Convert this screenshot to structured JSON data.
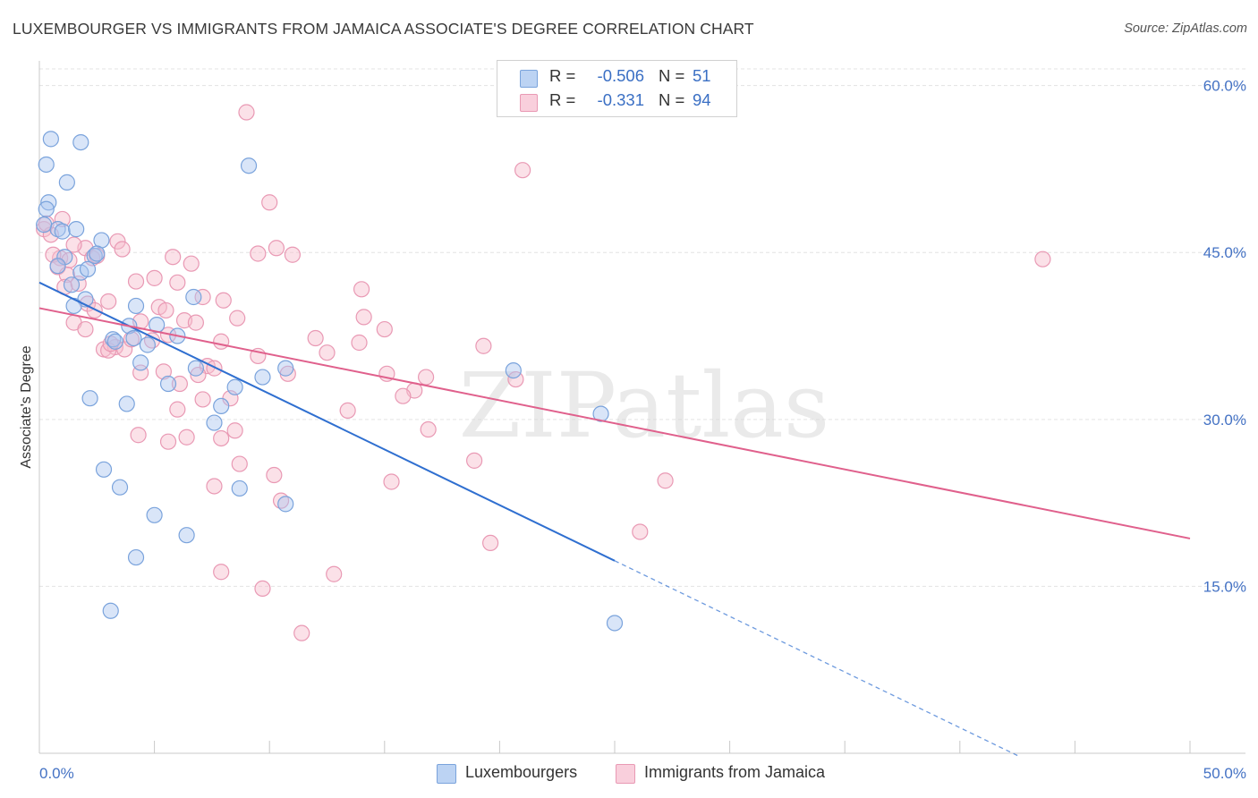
{
  "header": {
    "title": "LUXEMBOURGER VS IMMIGRANTS FROM JAMAICA ASSOCIATE'S DEGREE CORRELATION CHART",
    "source": "Source: ZipAtlas.com"
  },
  "watermark": "ZIPatlas",
  "legend_top": {
    "rows": [
      {
        "r_label": "R =",
        "r_value": "-0.506",
        "n_label": "N =",
        "n_value": "51"
      },
      {
        "r_label": "R =",
        "r_value": "-0.331",
        "n_label": "N =",
        "n_value": "94"
      }
    ]
  },
  "legend_bottom": {
    "items": [
      "Luxembourgers",
      "Immigrants from Jamaica"
    ]
  },
  "colors": {
    "blue_fill": "#aac6ef",
    "blue_stroke": "#7aa3dc",
    "blue_line": "#2f6fd0",
    "pink_fill": "#f7bccd",
    "pink_stroke": "#e999b4",
    "pink_line": "#e0608c",
    "grid": "#e3e3e3",
    "axis_tick_text": "#4472c4"
  },
  "chart_data": {
    "type": "scatter",
    "title": "LUXEMBOURGER VS IMMIGRANTS FROM JAMAICA ASSOCIATE'S DEGREE CORRELATION CHART",
    "xlabel": "",
    "ylabel": "Associate's Degree",
    "xlim": [
      0,
      50
    ],
    "ylim": [
      0,
      61.5
    ],
    "x_tick_labels": [
      "0.0%",
      "50.0%"
    ],
    "y_ticks": [
      15,
      30,
      45,
      60
    ],
    "y_tick_labels": [
      "15.0%",
      "30.0%",
      "45.0%",
      "60.0%"
    ],
    "grid": true,
    "legend_position": "top-center",
    "series": [
      {
        "name": "Luxembourgers",
        "color": "#aac6ef",
        "r": -0.506,
        "n": 51,
        "trend": {
          "x0": 0,
          "y0": 42.3,
          "x1": 25,
          "y1": 17.3,
          "dashed_to_x": 42.6
        },
        "points": [
          [
            0.5,
            55.2
          ],
          [
            1.8,
            54.9
          ],
          [
            0.3,
            52.9
          ],
          [
            1.2,
            51.3
          ],
          [
            9.1,
            52.8
          ],
          [
            0.4,
            49.5
          ],
          [
            0.3,
            48.9
          ],
          [
            0.8,
            47.1
          ],
          [
            1.0,
            46.9
          ],
          [
            1.6,
            47.1
          ],
          [
            2.7,
            46.1
          ],
          [
            1.1,
            44.6
          ],
          [
            2.4,
            44.7
          ],
          [
            2.5,
            44.9
          ],
          [
            0.8,
            43.8
          ],
          [
            1.8,
            43.2
          ],
          [
            2.1,
            43.5
          ],
          [
            1.4,
            42.1
          ],
          [
            6.7,
            41.0
          ],
          [
            2.0,
            40.8
          ],
          [
            1.5,
            40.2
          ],
          [
            4.2,
            40.2
          ],
          [
            3.9,
            38.4
          ],
          [
            5.1,
            38.5
          ],
          [
            4.1,
            37.3
          ],
          [
            3.2,
            37.2
          ],
          [
            6.0,
            37.5
          ],
          [
            4.7,
            36.7
          ],
          [
            3.3,
            37.0
          ],
          [
            4.4,
            35.1
          ],
          [
            6.8,
            34.6
          ],
          [
            10.7,
            34.6
          ],
          [
            9.7,
            33.8
          ],
          [
            5.6,
            33.2
          ],
          [
            8.5,
            32.9
          ],
          [
            20.6,
            34.4
          ],
          [
            2.2,
            31.9
          ],
          [
            3.8,
            31.4
          ],
          [
            7.9,
            31.2
          ],
          [
            7.6,
            29.7
          ],
          [
            24.4,
            30.5
          ],
          [
            2.8,
            25.5
          ],
          [
            3.5,
            23.9
          ],
          [
            8.7,
            23.8
          ],
          [
            10.7,
            22.4
          ],
          [
            5.0,
            21.4
          ],
          [
            6.4,
            19.6
          ],
          [
            4.2,
            17.6
          ],
          [
            3.1,
            12.8
          ],
          [
            25.0,
            11.7
          ],
          [
            0.2,
            47.5
          ]
        ]
      },
      {
        "name": "Immigrants from Jamaica",
        "color": "#f7bccd",
        "r": -0.331,
        "n": 94,
        "trend": {
          "x0": 0,
          "y0": 40.0,
          "x1": 50,
          "y1": 19.3
        },
        "points": [
          [
            9.0,
            57.6
          ],
          [
            21.0,
            52.4
          ],
          [
            10.0,
            49.5
          ],
          [
            0.2,
            47.1
          ],
          [
            0.5,
            46.6
          ],
          [
            0.9,
            44.5
          ],
          [
            1.3,
            44.3
          ],
          [
            0.6,
            44.8
          ],
          [
            2.0,
            45.4
          ],
          [
            2.3,
            44.5
          ],
          [
            2.5,
            44.7
          ],
          [
            1.5,
            45.7
          ],
          [
            0.8,
            43.7
          ],
          [
            1.2,
            43.0
          ],
          [
            3.4,
            46.0
          ],
          [
            3.6,
            45.3
          ],
          [
            5.8,
            44.6
          ],
          [
            10.3,
            45.4
          ],
          [
            11.0,
            44.8
          ],
          [
            9.5,
            44.9
          ],
          [
            6.6,
            44.0
          ],
          [
            43.6,
            44.4
          ],
          [
            1.1,
            41.9
          ],
          [
            1.7,
            42.2
          ],
          [
            4.2,
            42.4
          ],
          [
            5.0,
            42.7
          ],
          [
            6.0,
            42.3
          ],
          [
            7.1,
            41.0
          ],
          [
            8.0,
            40.7
          ],
          [
            3.0,
            40.6
          ],
          [
            2.1,
            40.4
          ],
          [
            5.2,
            40.1
          ],
          [
            5.5,
            39.8
          ],
          [
            4.4,
            38.8
          ],
          [
            1.5,
            38.7
          ],
          [
            2.0,
            38.1
          ],
          [
            6.3,
            38.9
          ],
          [
            6.8,
            38.7
          ],
          [
            8.6,
            39.1
          ],
          [
            14.1,
            39.2
          ],
          [
            15.0,
            38.1
          ],
          [
            14.0,
            41.7
          ],
          [
            12.0,
            37.3
          ],
          [
            13.9,
            36.9
          ],
          [
            19.3,
            36.6
          ],
          [
            2.8,
            36.3
          ],
          [
            3.3,
            36.5
          ],
          [
            3.7,
            36.3
          ],
          [
            4.0,
            37.2
          ],
          [
            4.9,
            37.1
          ],
          [
            3.0,
            36.2
          ],
          [
            9.5,
            35.7
          ],
          [
            7.3,
            34.8
          ],
          [
            7.6,
            34.6
          ],
          [
            4.4,
            34.2
          ],
          [
            5.4,
            34.3
          ],
          [
            6.9,
            34.0
          ],
          [
            10.8,
            34.1
          ],
          [
            15.1,
            34.1
          ],
          [
            16.8,
            33.8
          ],
          [
            6.1,
            33.2
          ],
          [
            16.3,
            32.6
          ],
          [
            15.8,
            32.1
          ],
          [
            20.7,
            33.6
          ],
          [
            7.1,
            31.8
          ],
          [
            8.3,
            31.9
          ],
          [
            6.0,
            30.9
          ],
          [
            13.4,
            30.8
          ],
          [
            8.5,
            29.0
          ],
          [
            16.9,
            29.1
          ],
          [
            4.3,
            28.6
          ],
          [
            6.4,
            28.4
          ],
          [
            7.9,
            28.3
          ],
          [
            5.6,
            28.0
          ],
          [
            8.7,
            26.0
          ],
          [
            18.9,
            26.3
          ],
          [
            10.2,
            25.0
          ],
          [
            15.3,
            24.4
          ],
          [
            27.2,
            24.5
          ],
          [
            7.6,
            24.0
          ],
          [
            10.5,
            22.7
          ],
          [
            26.1,
            19.9
          ],
          [
            19.6,
            18.9
          ],
          [
            7.9,
            16.3
          ],
          [
            12.8,
            16.1
          ],
          [
            9.7,
            14.8
          ],
          [
            11.4,
            10.8
          ],
          [
            0.3,
            47.6
          ],
          [
            1.0,
            48.0
          ],
          [
            3.1,
            36.8
          ],
          [
            5.6,
            37.6
          ],
          [
            2.4,
            39.8
          ],
          [
            7.9,
            37.0
          ],
          [
            12.5,
            36.0
          ]
        ]
      }
    ]
  }
}
